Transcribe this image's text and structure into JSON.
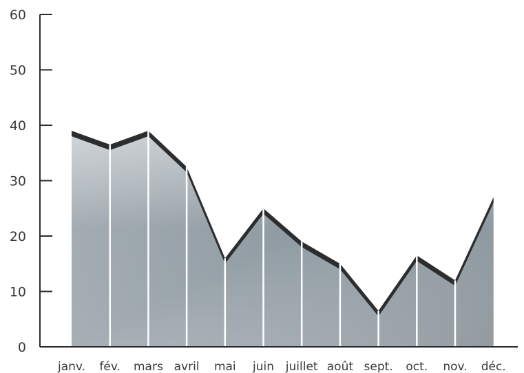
{
  "chart_data": {
    "type": "area",
    "categories": [
      "janv.",
      "fév.",
      "mars",
      "avril",
      "mai",
      "juin",
      "juillet",
      "août",
      "sept.",
      "oct.",
      "nov.",
      "déc."
    ],
    "values": [
      39,
      36.5,
      39,
      32.5,
      16,
      25,
      19,
      15,
      6.5,
      16.5,
      12,
      27
    ],
    "ylim": [
      0,
      60
    ],
    "yticks": [
      0,
      10,
      20,
      30,
      40,
      50,
      60
    ],
    "title": "",
    "xlabel": "",
    "ylabel": "",
    "grid": false,
    "colors": {
      "area_fill": "#8f9aa2",
      "area_fill_light": "#c9cfd3",
      "top_band": "#2b2d2f",
      "axis": "#2b2b2b",
      "separator": "#ffffff"
    }
  }
}
